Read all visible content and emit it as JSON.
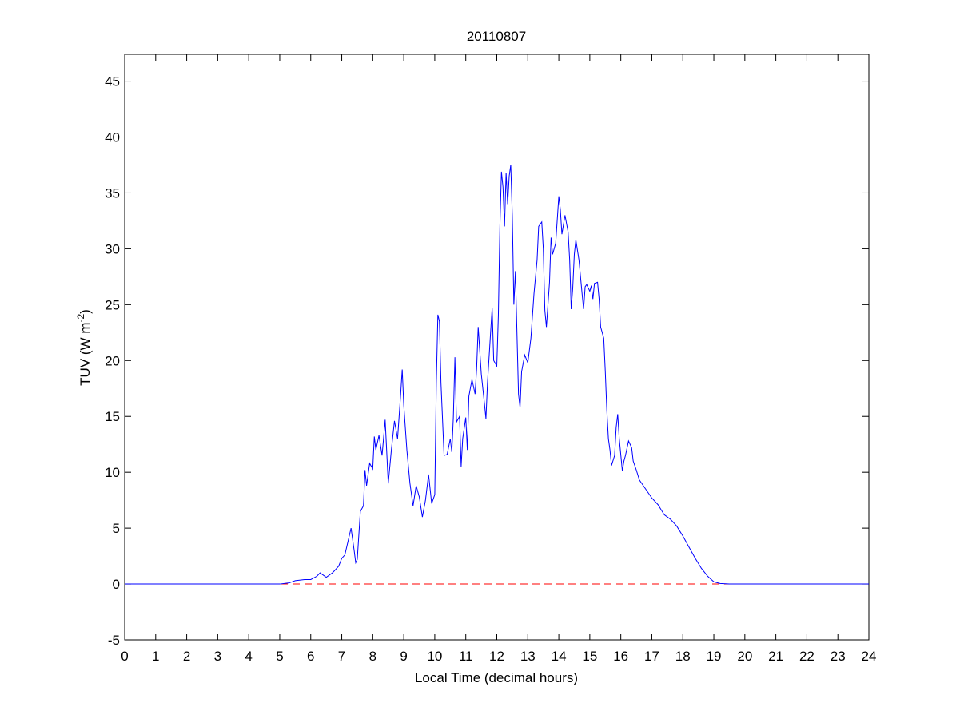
{
  "chart_data": {
    "type": "line",
    "title": "20110807",
    "xlabel": "Local Time (decimal hours)",
    "ylabel": "TUV (W m",
    "ylabel_superscript": "-2",
    "ylabel_end": ")",
    "color": "#0000ff",
    "x": [
      0,
      5.0,
      5.3,
      5.5,
      5.8,
      6.0,
      6.2,
      6.3,
      6.5,
      6.7,
      6.9,
      7.0,
      7.1,
      7.2,
      7.3,
      7.4,
      7.45,
      7.5,
      7.6,
      7.7,
      7.75,
      7.8,
      7.9,
      8.0,
      8.05,
      8.1,
      8.2,
      8.3,
      8.4,
      8.5,
      8.6,
      8.7,
      8.8,
      8.9,
      8.95,
      9.0,
      9.1,
      9.2,
      9.3,
      9.4,
      9.5,
      9.6,
      9.7,
      9.8,
      9.9,
      10.0,
      10.05,
      10.1,
      10.15,
      10.2,
      10.3,
      10.4,
      10.5,
      10.55,
      10.6,
      10.65,
      10.7,
      10.8,
      10.85,
      10.9,
      11.0,
      11.05,
      11.1,
      11.2,
      11.3,
      11.35,
      11.4,
      11.5,
      11.6,
      11.65,
      11.7,
      11.8,
      11.85,
      11.9,
      12.0,
      12.05,
      12.1,
      12.15,
      12.2,
      12.25,
      12.3,
      12.35,
      12.4,
      12.45,
      12.5,
      12.55,
      12.6,
      12.7,
      12.75,
      12.8,
      12.9,
      13.0,
      13.1,
      13.2,
      13.3,
      13.35,
      13.45,
      13.5,
      13.55,
      13.6,
      13.7,
      13.75,
      13.8,
      13.9,
      14.0,
      14.05,
      14.1,
      14.2,
      14.3,
      14.35,
      14.4,
      14.45,
      14.5,
      14.55,
      14.65,
      14.75,
      14.8,
      14.85,
      14.9,
      15.0,
      15.05,
      15.1,
      15.15,
      15.25,
      15.3,
      15.35,
      15.45,
      15.5,
      15.55,
      15.6,
      15.65,
      15.7,
      15.8,
      15.85,
      15.9,
      15.95,
      16.05,
      16.1,
      16.15,
      16.25,
      16.35,
      16.4,
      16.5,
      16.6,
      16.8,
      17.0,
      17.2,
      17.4,
      17.6,
      17.8,
      18.0,
      18.2,
      18.4,
      18.6,
      18.8,
      19.0,
      19.2,
      19.5,
      24
    ],
    "values": [
      0,
      0,
      0.1,
      0.3,
      0.4,
      0.4,
      0.7,
      1.0,
      0.6,
      1.0,
      1.6,
      2.3,
      2.6,
      3.8,
      5.0,
      3.0,
      1.9,
      2.2,
      6.5,
      7.0,
      10.2,
      8.8,
      10.8,
      10.3,
      13.2,
      12.0,
      13.3,
      11.5,
      14.7,
      9.0,
      12.0,
      14.6,
      13.0,
      17.0,
      19.2,
      16.0,
      12.0,
      9.0,
      7.0,
      8.8,
      7.8,
      6.0,
      7.5,
      9.8,
      7.2,
      8.0,
      18.0,
      24.1,
      23.5,
      18.0,
      11.5,
      11.6,
      13.0,
      11.8,
      15.0,
      20.3,
      14.5,
      15.0,
      10.5,
      13.0,
      14.9,
      12.0,
      16.8,
      18.3,
      17.0,
      19.3,
      23.0,
      18.8,
      16.2,
      14.8,
      18.0,
      22.5,
      24.7,
      20.0,
      19.5,
      24.0,
      32.0,
      36.9,
      35.5,
      32.0,
      36.8,
      34.0,
      36.5,
      37.5,
      33.0,
      25.0,
      28.0,
      17.0,
      15.8,
      19.0,
      20.5,
      19.8,
      22.0,
      26.0,
      29.0,
      32.0,
      32.4,
      30.0,
      24.5,
      23.0,
      27.0,
      31.0,
      29.5,
      30.5,
      34.7,
      33.5,
      31.3,
      33.0,
      31.5,
      29.0,
      24.6,
      26.5,
      29.5,
      30.8,
      29.0,
      26.0,
      24.6,
      26.6,
      26.8,
      26.2,
      26.7,
      25.5,
      26.9,
      27.0,
      25.5,
      23.0,
      22.0,
      19.0,
      15.5,
      13.0,
      12.0,
      10.6,
      11.5,
      14.0,
      15.2,
      13.0,
      10.1,
      11.0,
      11.5,
      12.8,
      12.2,
      11.0,
      10.2,
      9.3,
      8.5,
      7.7,
      7.1,
      6.2,
      5.8,
      5.2,
      4.3,
      3.3,
      2.3,
      1.4,
      0.7,
      0.2,
      0.05,
      0,
      0
    ],
    "reference_line": {
      "y": 0,
      "color": "#ff0000",
      "style": "dashed"
    },
    "xlim": [
      0,
      24
    ],
    "xticks": [
      0,
      1,
      2,
      3,
      4,
      5,
      6,
      7,
      8,
      9,
      10,
      11,
      12,
      13,
      14,
      15,
      16,
      17,
      18,
      19,
      20,
      21,
      22,
      23,
      24
    ],
    "ylim": [
      -5,
      47.4
    ],
    "yticks": [
      -5,
      0,
      5,
      10,
      15,
      20,
      25,
      30,
      35,
      40,
      45
    ],
    "grid": false
  }
}
